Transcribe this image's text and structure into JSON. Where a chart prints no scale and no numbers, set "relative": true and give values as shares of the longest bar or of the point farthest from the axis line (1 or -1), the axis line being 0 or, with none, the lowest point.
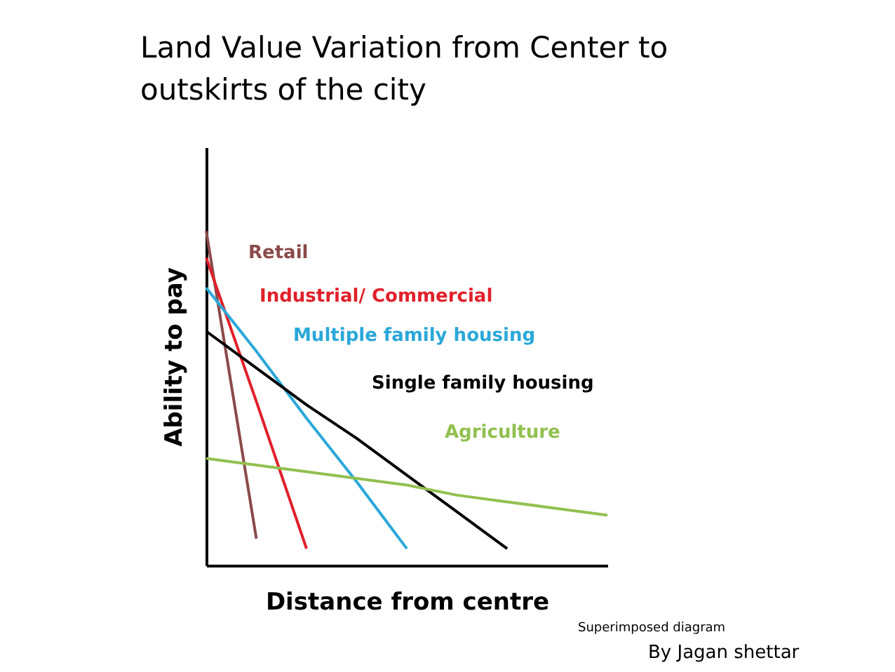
{
  "chart_data": {
    "type": "line",
    "title": "Land Value Variation from Center to outskirts of the city",
    "xlabel": "Distance from centre",
    "ylabel": "Ability to pay",
    "relative": true,
    "legend": false,
    "grid": false,
    "marker": "none",
    "line_style": "solid",
    "categories": [
      null,
      null,
      null,
      null,
      null,
      null,
      null,
      null,
      null
    ],
    "series": [
      {
        "name": "Retail",
        "color": "#8b4a4a",
        "values": [
          1,
          0.08,
          null,
          null,
          null,
          null,
          null,
          null,
          null
        ]
      },
      {
        "name": "Industrial/ Commercial",
        "color": "#e0202a",
        "values": [
          0.92,
          0.49,
          0.05,
          null,
          null,
          null,
          null,
          null,
          null
        ]
      },
      {
        "name": "Multiple family housing",
        "color": "#2aa8d8",
        "values": [
          0.83,
          0.64,
          0.44,
          0.25,
          0.05,
          null,
          null,
          null,
          null
        ]
      },
      {
        "name": "Single family housing",
        "color": "#000000",
        "values": [
          0.7,
          0.59,
          0.48,
          0.38,
          0.27,
          0.16,
          0.05,
          null,
          null
        ]
      },
      {
        "name": "Agriculture",
        "color": "#92c050",
        "values": [
          0.32,
          0.3,
          0.28,
          0.26,
          0.24,
          0.21,
          0.19,
          0.17,
          0.15
        ]
      }
    ],
    "annotations": [
      "Superimposed diagram",
      "By Jagan shettar"
    ]
  }
}
